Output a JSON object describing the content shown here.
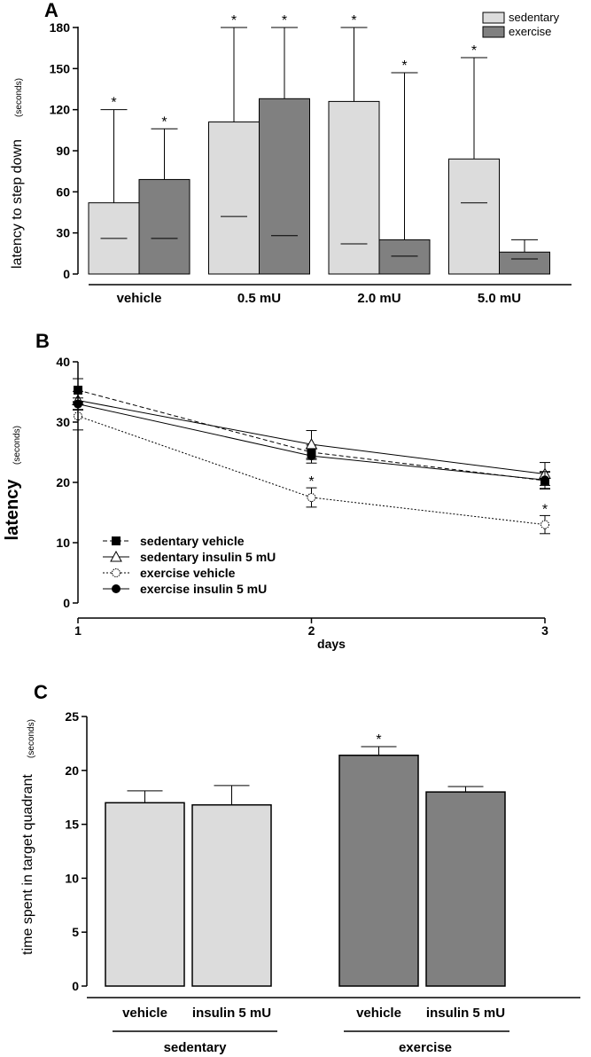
{
  "chart_data": [
    {
      "panel": "A",
      "type": "bar",
      "ylabel": "latency to step down",
      "yunit": "(seconds)",
      "ylim": [
        0,
        180
      ],
      "yticks": [
        0,
        30,
        60,
        90,
        120,
        150,
        180
      ],
      "categories": [
        "vehicle",
        "0.5 mU",
        "2.0 mU",
        "5.0 mU"
      ],
      "legend_position": "top-right",
      "series": [
        {
          "name": "sedentary",
          "color": "#dcdcdc",
          "values": [
            52,
            111,
            126,
            84
          ],
          "err_low": [
            26,
            42,
            22,
            52
          ],
          "err_high": [
            120,
            180,
            180,
            158
          ],
          "stars": [
            true,
            true,
            true,
            true
          ]
        },
        {
          "name": "exercise",
          "color": "#808080",
          "values": [
            69,
            128,
            25,
            16
          ],
          "err_low": [
            26,
            28,
            13,
            11
          ],
          "err_high": [
            106,
            180,
            147,
            25
          ],
          "stars": [
            true,
            true,
            true,
            false
          ]
        }
      ]
    },
    {
      "panel": "B",
      "type": "line",
      "ylabel": "latency",
      "yunit": "(seconds)",
      "xlabel": "days",
      "ylim": [
        0,
        40
      ],
      "yticks": [
        0,
        10,
        20,
        30,
        40
      ],
      "x": [
        1,
        2,
        3
      ],
      "legend_position": "bottom-left",
      "series": [
        {
          "name": "sedentary vehicle",
          "marker": "square-filled",
          "dash": "dashed",
          "values": [
            35.3,
            25.0,
            20.3
          ],
          "err": [
            1.9,
            1.2,
            1.4
          ],
          "stars": [
            false,
            false,
            false
          ]
        },
        {
          "name": "sedentary insulin 5 mU",
          "marker": "triangle-open",
          "dash": "solid",
          "values": [
            33.6,
            26.3,
            21.4
          ],
          "err": [
            1.5,
            2.3,
            1.9
          ],
          "stars": [
            false,
            false,
            false
          ]
        },
        {
          "name": "exercise vehicle",
          "marker": "circle-open",
          "dash": "dotted",
          "values": [
            31.0,
            17.5,
            13.0
          ],
          "err": [
            2.3,
            1.6,
            1.5
          ],
          "stars": [
            false,
            true,
            true
          ]
        },
        {
          "name": "exercise insulin 5 mU",
          "marker": "circle-filled",
          "dash": "solid",
          "values": [
            33.0,
            24.4,
            20.4
          ],
          "err": [
            1.0,
            1.2,
            1.4
          ],
          "stars": [
            false,
            false,
            false
          ]
        }
      ]
    },
    {
      "panel": "C",
      "type": "bar",
      "ylabel": "time spent in target quadrant",
      "yunit": "(seconds)",
      "ylim": [
        0,
        25
      ],
      "yticks": [
        0,
        5,
        10,
        15,
        20,
        25
      ],
      "categories": [
        "vehicle",
        "insulin 5 mU",
        "vehicle",
        "insulin 5 mU"
      ],
      "groups": [
        "sedentary",
        "exercise"
      ],
      "values": [
        17.0,
        16.8,
        21.4,
        18.0
      ],
      "err_high": [
        18.1,
        18.6,
        22.2,
        18.5
      ],
      "colors": [
        "#dcdcdc",
        "#dcdcdc",
        "#808080",
        "#808080"
      ],
      "stars": [
        false,
        false,
        true,
        false
      ]
    }
  ]
}
